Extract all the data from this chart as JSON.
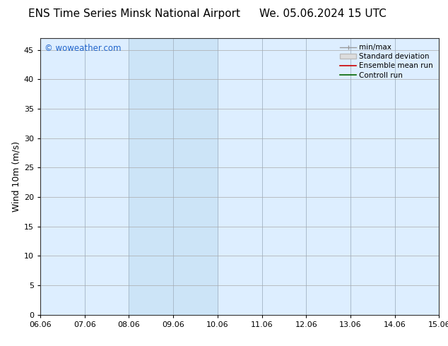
{
  "title": "ENS Time Series Minsk National Airport",
  "title_right": "We. 05.06.2024 15 UTC",
  "ylabel": "Wind 10m (m/s)",
  "watermark": "© woweather.com",
  "x_labels": [
    "06.06",
    "07.06",
    "08.06",
    "09.06",
    "10.06",
    "11.06",
    "12.06",
    "13.06",
    "14.06",
    "15.06"
  ],
  "x_ticks": [
    0,
    1,
    2,
    3,
    4,
    5,
    6,
    7,
    8,
    9
  ],
  "ylim": [
    0,
    47
  ],
  "yticks": [
    0,
    5,
    10,
    15,
    20,
    25,
    30,
    35,
    40,
    45
  ],
  "bg_color": "#ffffff",
  "plot_bg_color": "#ddeeff",
  "shaded_band_light": "#ddeeff",
  "shaded_bands": [
    {
      "xmin": 2,
      "xmax": 4,
      "color": "#cce4f7"
    },
    {
      "xmin": 9,
      "xmax": 10,
      "color": "#cce4f7"
    }
  ],
  "divider_lines_x": [
    1,
    2,
    3,
    4,
    5,
    6,
    7,
    8,
    9
  ],
  "divider_color": "#aabbcc",
  "legend_entries": [
    {
      "label": "min/max",
      "color": "#999999",
      "style": "minmax"
    },
    {
      "label": "Standard deviation",
      "color": "#cccccc",
      "style": "band"
    },
    {
      "label": "Ensemble mean run",
      "color": "#cc0000",
      "style": "line"
    },
    {
      "label": "Controll run",
      "color": "#006600",
      "style": "line"
    }
  ],
  "title_fontsize": 11,
  "tick_fontsize": 8,
  "ylabel_fontsize": 9,
  "watermark_color": "#2266cc",
  "watermark_fontsize": 8.5,
  "legend_fontsize": 7.5
}
